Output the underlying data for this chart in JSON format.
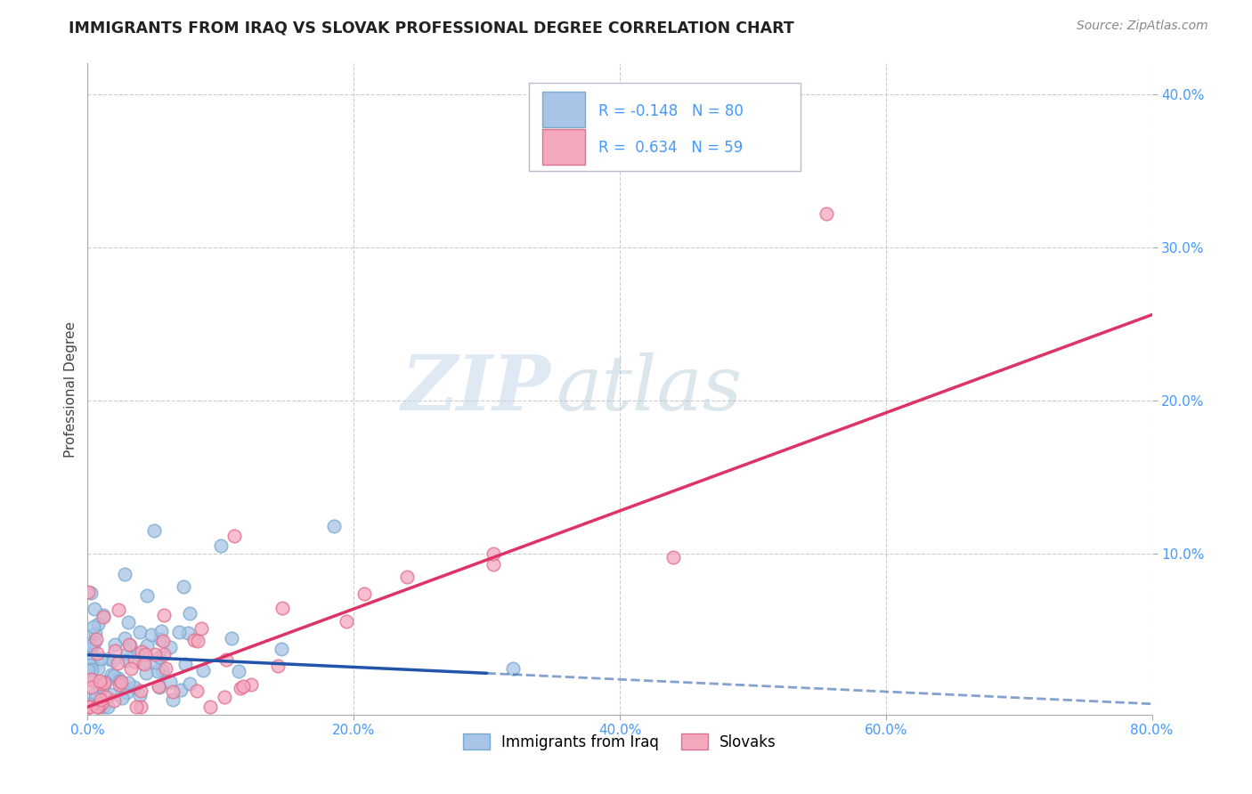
{
  "title": "IMMIGRANTS FROM IRAQ VS SLOVAK PROFESSIONAL DEGREE CORRELATION CHART",
  "source": "Source: ZipAtlas.com",
  "xlim": [
    0.0,
    0.8
  ],
  "ylim": [
    -0.005,
    0.42
  ],
  "ylabel": "Professional Degree",
  "legend1_label": "R = -0.148   N = 80",
  "legend2_label": "R =  0.634   N = 59",
  "legend_bottom1": "Immigrants from Iraq",
  "legend_bottom2": "Slovaks",
  "iraq_color": "#a8c4e6",
  "iraq_edge_color": "#7aaad0",
  "slovak_color": "#f4a8be",
  "slovak_edge_color": "#e07090",
  "iraq_line_color": "#2255aa",
  "slovak_line_color": "#dd3366",
  "watermark_zip": "ZIP",
  "watermark_atlas": "atlas",
  "background_color": "#ffffff",
  "grid_color": "#cccccc",
  "tick_color": "#4499ff",
  "x_ticks": [
    0.0,
    0.2,
    0.4,
    0.6,
    0.8
  ],
  "x_tick_labels": [
    "0.0%",
    "20.0%",
    "40.0%",
    "60.0%",
    "80.0%"
  ],
  "y_ticks": [
    0.1,
    0.2,
    0.3,
    0.4
  ],
  "y_tick_labels": [
    "10.0%",
    "20.0%",
    "30.0%",
    "40.0%"
  ]
}
